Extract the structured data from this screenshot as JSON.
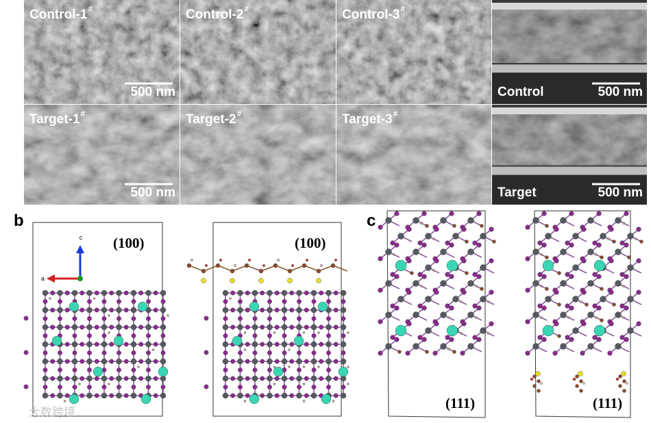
{
  "figure_a": {
    "panels": [
      {
        "label": "Control-1",
        "sup": "#",
        "scale_bar": "500 nm"
      },
      {
        "label": "Control-2",
        "sup": "#"
      },
      {
        "label": "Control-3",
        "sup": "#"
      },
      {
        "label": "Control",
        "scale_bar": "500 nm"
      },
      {
        "label": "Target-1",
        "sup": "#",
        "scale_bar": "500 nm"
      },
      {
        "label": "Target-2",
        "sup": "#"
      },
      {
        "label": "Target-3",
        "sup": "#"
      },
      {
        "label": "Target",
        "scale_bar": "500 nm"
      }
    ]
  },
  "figure_b": {
    "label": "b",
    "axis_labels": [
      "c",
      "a"
    ],
    "planes": [
      "(100)",
      "(100)"
    ]
  },
  "figure_c": {
    "label": "c",
    "planes": [
      "(111)",
      "(111)"
    ]
  },
  "watermark": "大数跨境"
}
